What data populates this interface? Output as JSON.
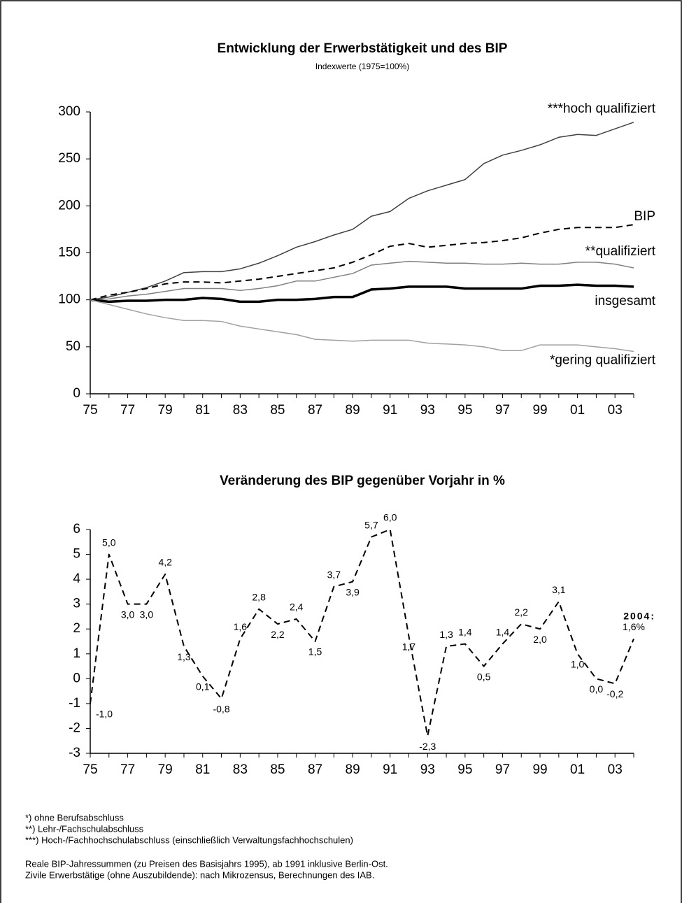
{
  "chart_data": [
    {
      "type": "line",
      "title": "Entwicklung der Erwerbstätigkeit und des BIP",
      "subtitle": "Indexwerte (1975=100%)",
      "categories": [
        "75",
        null,
        "77",
        null,
        "79",
        null,
        "81",
        null,
        "83",
        null,
        "85",
        null,
        "87",
        null,
        "89",
        null,
        "91",
        null,
        "93",
        null,
        "95",
        null,
        "97",
        null,
        "99",
        null,
        "01",
        null,
        "03",
        null
      ],
      "ylim": [
        0,
        300
      ],
      "yticks": [
        0,
        50,
        100,
        150,
        200,
        250,
        300
      ],
      "series": [
        {
          "name": "***hoch qualifiziert",
          "color": "#404040",
          "line_style": "solid",
          "values": [
            100,
            103,
            108,
            113,
            120,
            129,
            130,
            130,
            133,
            139,
            147,
            156,
            162,
            169,
            175,
            189,
            194,
            208,
            216,
            222,
            228,
            245,
            254,
            259,
            265,
            273,
            276,
            275,
            282,
            289
          ]
        },
        {
          "name": "BIP",
          "color": "#000000",
          "line_style": "dashed",
          "values": [
            100,
            105,
            108,
            112,
            117,
            119,
            119,
            118,
            120,
            122,
            125,
            128,
            131,
            134,
            140,
            148,
            157,
            160,
            156,
            158,
            160,
            161,
            163,
            166,
            171,
            175,
            177,
            177,
            177,
            180
          ]
        },
        {
          "name": "**qualifiziert",
          "color": "#808080",
          "line_style": "solid",
          "values": [
            100,
            101,
            104,
            106,
            109,
            112,
            112,
            112,
            110,
            112,
            115,
            120,
            120,
            124,
            128,
            137,
            139,
            141,
            140,
            139,
            139,
            138,
            138,
            139,
            138,
            138,
            140,
            140,
            138,
            134
          ]
        },
        {
          "name": "insgesamt",
          "color": "#000000",
          "line_style": "bold",
          "values": [
            100,
            98,
            99,
            99,
            100,
            100,
            102,
            101,
            98,
            98,
            100,
            100,
            101,
            103,
            103,
            111,
            112,
            114,
            114,
            114,
            112,
            112,
            112,
            112,
            115,
            115,
            116,
            115,
            115,
            114
          ]
        },
        {
          "name": "*gering qualifiziert",
          "color": "#a0a0a0",
          "line_style": "solid",
          "values": [
            100,
            95,
            90,
            85,
            81,
            78,
            78,
            77,
            72,
            69,
            66,
            63,
            58,
            57,
            56,
            57,
            57,
            57,
            54,
            53,
            52,
            50,
            46,
            46,
            52,
            52,
            52,
            50,
            48,
            45
          ]
        }
      ]
    },
    {
      "type": "line",
      "title": "Veränderung des BIP gegenüber Vorjahr in %",
      "categories": [
        "75",
        null,
        "77",
        null,
        "79",
        null,
        "81",
        null,
        "83",
        null,
        "85",
        null,
        "87",
        null,
        "89",
        null,
        "91",
        null,
        "93",
        null,
        "95",
        null,
        "97",
        null,
        "99",
        null,
        "01",
        null,
        "03",
        null
      ],
      "ylim": [
        -3,
        6
      ],
      "yticks": [
        -3,
        -2,
        -1,
        0,
        1,
        2,
        3,
        4,
        5,
        6
      ],
      "color": "#000000",
      "line_style": "dashed",
      "values": [
        -1.0,
        5.0,
        3.0,
        3.0,
        4.2,
        1.3,
        0.1,
        -0.8,
        1.6,
        2.8,
        2.2,
        2.4,
        1.5,
        3.7,
        3.9,
        5.7,
        6.0,
        1.7,
        -2.3,
        1.3,
        1.4,
        0.5,
        1.4,
        2.2,
        2.0,
        3.1,
        1.0,
        0.0,
        -0.2,
        1.6
      ],
      "value_labels": [
        "-1,0",
        "5,0",
        "3,0",
        "3,0",
        "4,2",
        "1,3",
        "0,1",
        "-0,8",
        "1,6",
        "2,8",
        "2,2",
        "2,4",
        "1,5",
        "3,7",
        "3,9",
        "5,7",
        "6,0",
        "1,7",
        "-2,3",
        "1,3",
        "1,4",
        "0,5",
        "1,4",
        "2,2",
        "2,0",
        "3,1",
        "1,0",
        "0,0",
        "-0,2",
        "1,6%"
      ],
      "annotation": "2004:"
    }
  ],
  "footnotes": [
    "*) ohne Berufsabschluss",
    "**) Lehr-/Fachschulabschluss",
    "***) Hoch-/Fachhochschulabschluss (einschließlich Verwaltungsfachhochschulen)"
  ],
  "notes": [
    "Reale BIP-Jahressummen (zu Preisen des Basisjahrs 1995), ab 1991 inklusive Berlin-Ost.",
    "Zivile Erwerbstätige (ohne Auszubildende): nach Mikrozensus, Berechnungen des IAB."
  ]
}
